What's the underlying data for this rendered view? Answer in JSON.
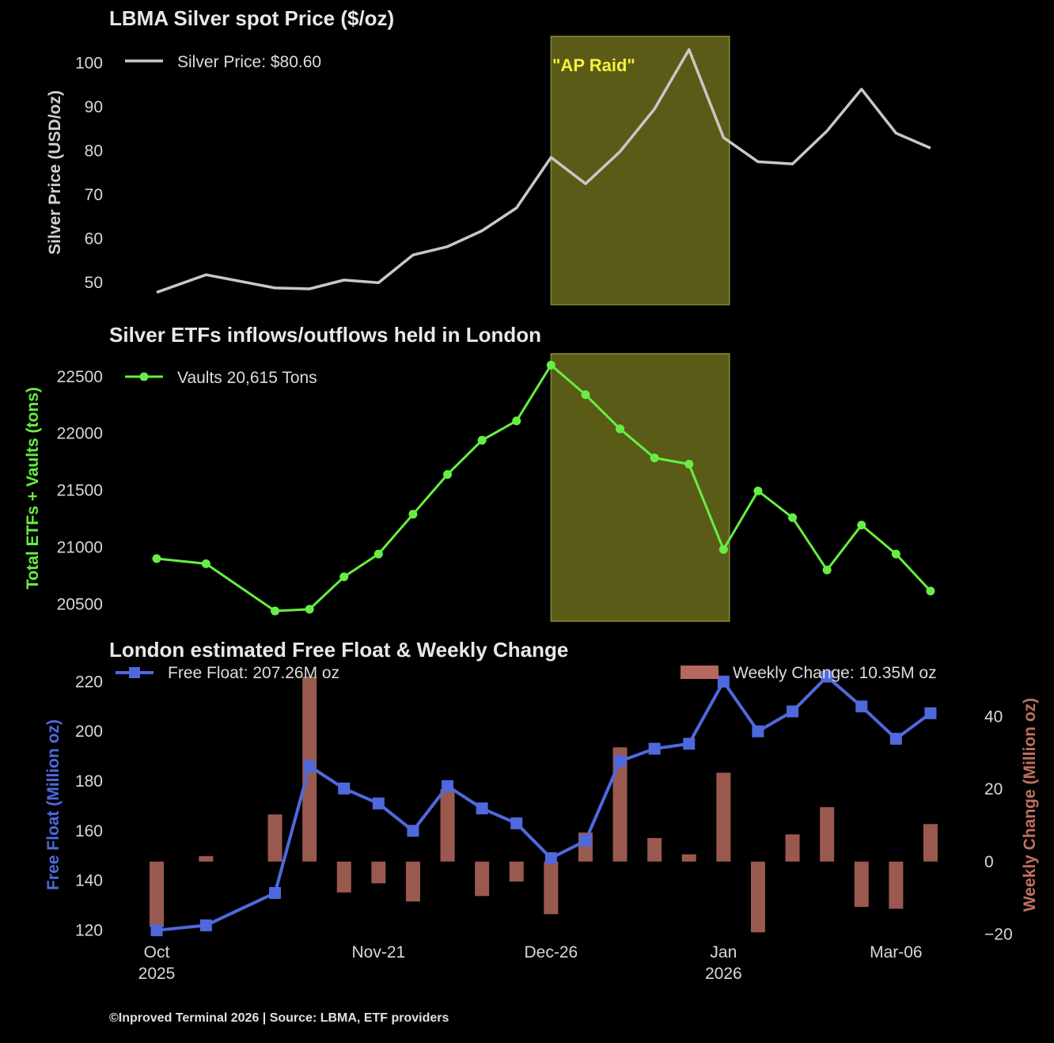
{
  "chart_data": [
    {
      "type": "line",
      "title": "LBMA Silver spot Price ($/oz)",
      "ylabel": "Silver Price (USD/oz)",
      "legend": "Silver Price: $80.60",
      "annotation": "\"AP Raid\"",
      "ylim": [
        45,
        106
      ],
      "yticks": [
        50,
        60,
        70,
        80,
        90,
        100
      ],
      "x": [
        0,
        1.43,
        3.43,
        4.43,
        5.43,
        6.43,
        7.43,
        8.43,
        9.43,
        10.43,
        11.43,
        12.43,
        13.43,
        14.43,
        15.43,
        16.43,
        17.43,
        18.43,
        19.43,
        20.43,
        21.43,
        22.43
      ],
      "values": [
        47.8,
        51.8,
        48.8,
        48.6,
        50.6,
        50.0,
        56.3,
        58.2,
        61.8,
        67.0,
        78.5,
        72.5,
        79.8,
        89.5,
        103.0,
        83.0,
        77.5,
        77.0,
        84.5,
        94.0,
        84.0,
        80.6
      ],
      "color": "#c8c8c8"
    },
    {
      "type": "line",
      "title": "Silver ETFs inflows/outflows held in London",
      "ylabel": "Total ETFs + Vaults (tons)",
      "legend": "Vaults 20,615 Tons",
      "ylim": [
        20350,
        22700
      ],
      "yticks": [
        20500,
        21000,
        21500,
        22000,
        22500
      ],
      "x": [
        0,
        1.43,
        3.43,
        4.43,
        5.43,
        6.43,
        7.43,
        8.43,
        9.43,
        10.43,
        11.43,
        12.43,
        13.43,
        14.43,
        15.43,
        16.43,
        17.43,
        18.43,
        19.43,
        20.43,
        21.43,
        22.43
      ],
      "values": [
        20900,
        20855,
        20440,
        20455,
        20740,
        20940,
        21290,
        21640,
        21940,
        22110,
        22600,
        22340,
        22040,
        21785,
        21730,
        20980,
        21495,
        21260,
        20800,
        21195,
        20940,
        20615
      ],
      "color": "#66ee44"
    },
    {
      "type": "bar+line",
      "title": "London estimated Free Float & Weekly Change",
      "ylabel_left": "Free Float (Million oz)",
      "ylabel_right": "Weekly Change (Million oz)",
      "legend_left": "Free Float: 207.26M oz",
      "legend_right": "Weekly Change: 10.35M oz",
      "ylim_left": [
        117,
        222
      ],
      "yticks_left": [
        120,
        140,
        160,
        180,
        200,
        220
      ],
      "ylim_right": [
        -21,
        51
      ],
      "yticks_right": [
        -20,
        0,
        20,
        40
      ],
      "x": [
        0,
        1.43,
        3.43,
        4.43,
        5.43,
        6.43,
        7.43,
        8.43,
        9.43,
        10.43,
        11.43,
        12.43,
        13.43,
        14.43,
        15.43,
        16.43,
        17.43,
        18.43,
        19.43,
        20.43,
        21.43,
        22.43
      ],
      "free_float": [
        120,
        122,
        135,
        186,
        177,
        171,
        160,
        178,
        169,
        163,
        149,
        156,
        188,
        193,
        195,
        220,
        200,
        208,
        222,
        210,
        197,
        207.26
      ],
      "weekly_change": [
        -18,
        1.5,
        13,
        51,
        -8.5,
        -6,
        -11,
        20,
        -9.5,
        -5.5,
        -14.5,
        8,
        31.5,
        6.5,
        2,
        24.5,
        -19.5,
        7.5,
        15,
        -12.5,
        -13,
        10.35
      ],
      "line_color": "#4f69dd",
      "bar_color": "#b5685c",
      "xticks": [
        {
          "pos": 0,
          "label": "Oct",
          "label2": "2025"
        },
        {
          "pos": 6.43,
          "label": "Nov-21",
          "label2": ""
        },
        {
          "pos": 11.43,
          "label": "Dec-26",
          "label2": ""
        },
        {
          "pos": 16.43,
          "label": "Jan",
          "label2": "2026"
        },
        {
          "pos": 21.43,
          "label": "Mar-06",
          "label2": ""
        }
      ]
    }
  ],
  "highlight_range": [
    11.43,
    16.6
  ],
  "highlight_color": "#6b6b1c",
  "footer": "©Inproved Terminal 2026 | Source: LBMA, ETF providers"
}
